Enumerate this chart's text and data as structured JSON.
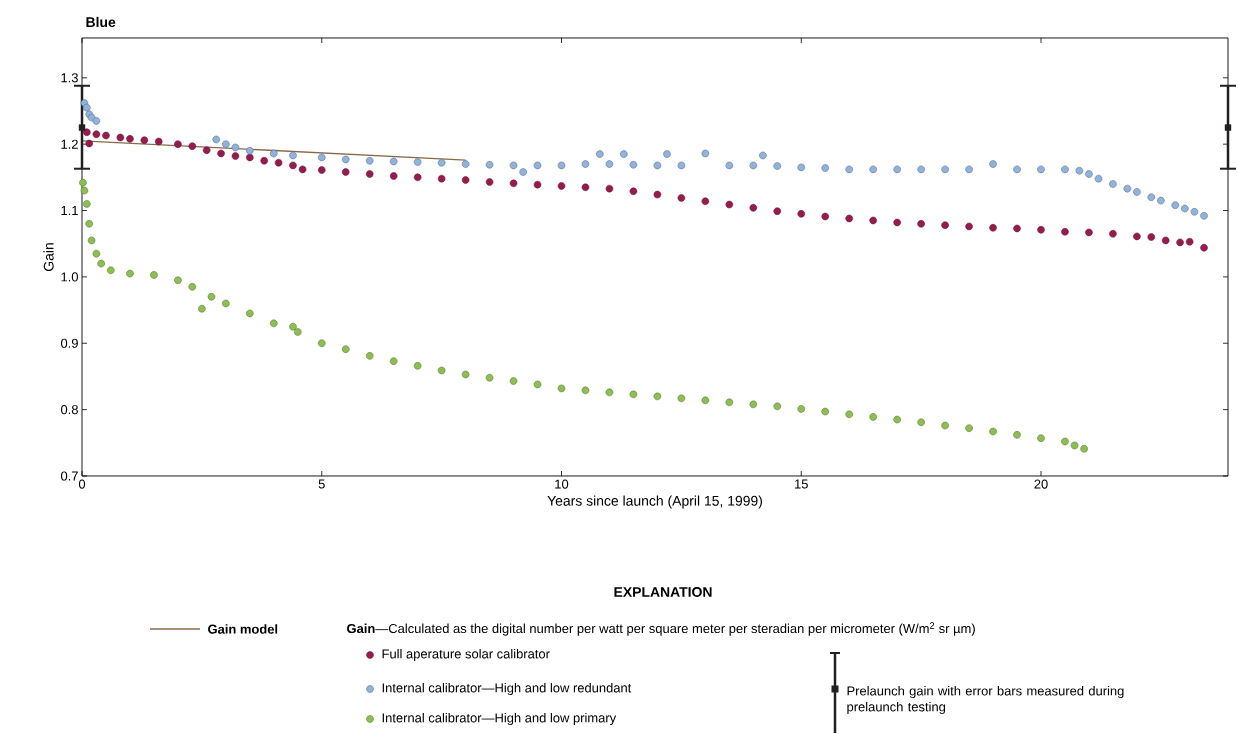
{
  "chart_data": {
    "type": "scatter",
    "title": "Blue",
    "xlabel": "Years since launch (April 15, 1999)",
    "ylabel": "Gain",
    "legend_title": "EXPLANATION",
    "legend": "bottom",
    "annotations": [
      "**Gain**—Calculated as the digital number per watt per square meter per steradian per micrometer (W/m$^{2}$ sr µm)"
    ],
    "xlim": [
      0,
      23.9
    ],
    "ylim": [
      0.7,
      1.36
    ],
    "xticks": [
      0,
      5,
      10,
      15,
      20
    ],
    "yticks": [
      0.7,
      0.8,
      0.9,
      {
        "value": 1.0,
        "label": "1.0"
      },
      1.1,
      1.2,
      1.3
    ],
    "series": [
      {
        "name": "Gain model",
        "type": "line",
        "line_style": "solid",
        "marker": "none",
        "color": "#8b6a4c",
        "x": [
          0,
          8
        ],
        "values": [
          1.205,
          1.176
        ]
      },
      {
        "name": "Full aperature solar calibrator",
        "marker": "circle",
        "color": "#981b4f",
        "x": [
          0.1,
          0.15,
          0.3,
          0.5,
          0.8,
          1.0,
          1.3,
          1.6,
          2.0,
          2.3,
          2.6,
          2.9,
          3.2,
          3.5,
          3.8,
          4.1,
          4.4,
          4.6,
          5.0,
          5.5,
          6.0,
          6.5,
          7.0,
          7.5,
          8.0,
          8.5,
          9.0,
          9.5,
          10.0,
          10.5,
          11.0,
          11.5,
          12.0,
          12.5,
          13.0,
          13.5,
          14.0,
          14.5,
          15.0,
          15.5,
          16.0,
          16.5,
          17.0,
          17.5,
          18.0,
          18.5,
          19.0,
          19.5,
          20.0,
          20.5,
          21.0,
          21.5,
          22.0,
          22.3,
          22.6,
          22.9,
          23.1,
          23.4
        ],
        "values": [
          1.218,
          1.201,
          1.215,
          1.213,
          1.21,
          1.208,
          1.206,
          1.204,
          1.2,
          1.197,
          1.191,
          1.186,
          1.182,
          1.18,
          1.175,
          1.172,
          1.168,
          1.162,
          1.161,
          1.158,
          1.155,
          1.152,
          1.15,
          1.148,
          1.146,
          1.143,
          1.141,
          1.139,
          1.137,
          1.135,
          1.133,
          1.129,
          1.124,
          1.119,
          1.114,
          1.109,
          1.104,
          1.099,
          1.095,
          1.091,
          1.088,
          1.085,
          1.082,
          1.08,
          1.078,
          1.076,
          1.074,
          1.073,
          1.071,
          1.068,
          1.067,
          1.065,
          1.061,
          1.06,
          1.055,
          1.052,
          1.053,
          1.044
        ]
      },
      {
        "name": "Internal calibrator—High and low redundant",
        "marker": "circle",
        "color": "#8fb3dc",
        "x": [
          0.05,
          0.1,
          0.15,
          0.2,
          0.3,
          2.8,
          3.0,
          3.2,
          3.5,
          4.0,
          4.4,
          5.0,
          5.5,
          6.0,
          6.5,
          7.0,
          7.5,
          8.0,
          8.5,
          9.0,
          9.2,
          9.5,
          10.0,
          10.5,
          10.8,
          11.0,
          11.3,
          11.5,
          12.0,
          12.2,
          12.5,
          13.0,
          13.5,
          14.0,
          14.2,
          14.5,
          15.0,
          15.5,
          16.0,
          16.5,
          17.0,
          17.5,
          18.0,
          18.5,
          19.0,
          19.5,
          20.0,
          20.5,
          20.8,
          21.0,
          21.2,
          21.5,
          21.8,
          22.0,
          22.3,
          22.5,
          22.8,
          23.0,
          23.2,
          23.4
        ],
        "values": [
          1.262,
          1.255,
          1.245,
          1.24,
          1.235,
          1.207,
          1.2,
          1.195,
          1.19,
          1.186,
          1.183,
          1.18,
          1.177,
          1.175,
          1.174,
          1.173,
          1.172,
          1.17,
          1.169,
          1.168,
          1.158,
          1.168,
          1.168,
          1.17,
          1.185,
          1.17,
          1.185,
          1.169,
          1.168,
          1.185,
          1.168,
          1.186,
          1.168,
          1.168,
          1.183,
          1.167,
          1.165,
          1.164,
          1.162,
          1.162,
          1.162,
          1.162,
          1.162,
          1.162,
          1.17,
          1.162,
          1.162,
          1.162,
          1.16,
          1.155,
          1.148,
          1.14,
          1.133,
          1.128,
          1.12,
          1.115,
          1.108,
          1.103,
          1.098,
          1.092
        ]
      },
      {
        "name": "Internal calibrator—High and low primary",
        "marker": "circle",
        "color": "#8dbf50",
        "x": [
          0.02,
          0.05,
          0.1,
          0.15,
          0.2,
          0.3,
          0.4,
          0.6,
          1.0,
          1.5,
          2.0,
          2.3,
          2.5,
          2.7,
          3.0,
          3.5,
          4.0,
          4.4,
          4.5,
          5.0,
          5.5,
          6.0,
          6.5,
          7.0,
          7.5,
          8.0,
          8.5,
          9.0,
          9.5,
          10.0,
          10.5,
          11.0,
          11.5,
          12.0,
          12.5,
          13.0,
          13.5,
          14.0,
          14.5,
          15.0,
          15.5,
          16.0,
          16.5,
          17.0,
          17.5,
          18.0,
          18.5,
          19.0,
          19.5,
          20.0,
          20.5,
          20.7,
          20.9
        ],
        "values": [
          1.142,
          1.13,
          1.11,
          1.08,
          1.055,
          1.035,
          1.02,
          1.01,
          1.005,
          1.003,
          0.995,
          0.985,
          0.952,
          0.97,
          0.96,
          0.945,
          0.93,
          0.925,
          0.917,
          0.9,
          0.891,
          0.881,
          0.873,
          0.866,
          0.859,
          0.853,
          0.848,
          0.843,
          0.838,
          0.832,
          0.829,
          0.826,
          0.823,
          0.82,
          0.817,
          0.814,
          0.811,
          0.808,
          0.805,
          0.801,
          0.797,
          0.793,
          0.789,
          0.785,
          0.781,
          0.776,
          0.772,
          0.767,
          0.762,
          0.757,
          0.752,
          0.746,
          0.741
        ]
      },
      {
        "name": "Prelaunch gain with error bars measured during prelaunch testing",
        "marker": "square",
        "color": "#231f20",
        "x": [
          0,
          23.9
        ],
        "values": [
          1.225,
          1.225
        ],
        "errors": [
          [
            1.163,
            1.288
          ],
          [
            1.163,
            1.288
          ]
        ]
      }
    ]
  }
}
